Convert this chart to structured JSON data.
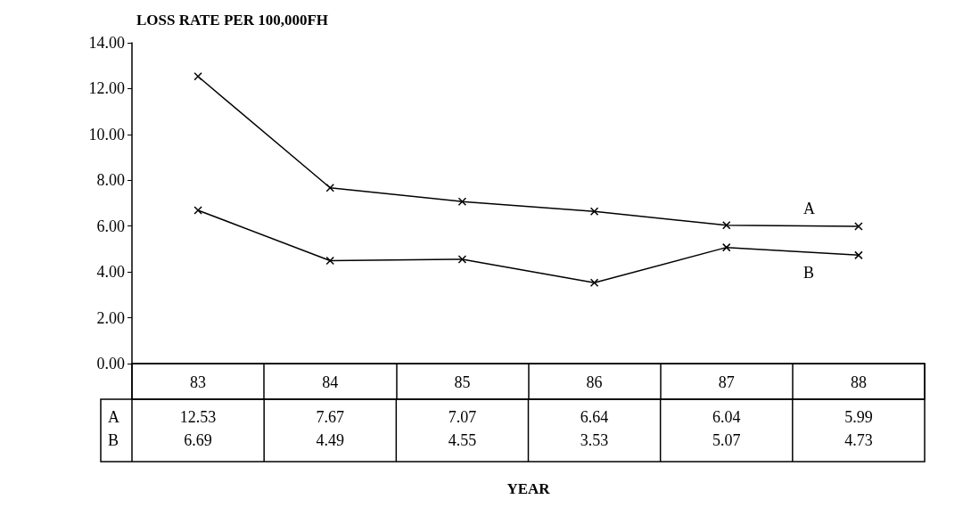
{
  "chart_data": {
    "type": "line",
    "ylabel": "LOSS RATE PER 100,000FH",
    "annotations": [
      "YEAR"
    ],
    "categories": [
      "83",
      "84",
      "85",
      "86",
      "87",
      "88"
    ],
    "series": [
      {
        "name": "A",
        "color": "#000000",
        "values": [
          12.53,
          7.67,
          7.07,
          6.64,
          6.04,
          5.99
        ]
      },
      {
        "name": "B",
        "color": "#000000",
        "values": [
          6.69,
          4.49,
          4.55,
          3.53,
          5.07,
          4.73
        ]
      }
    ],
    "ylim": [
      0,
      14
    ],
    "yticks": [
      {
        "value": 0,
        "label": "0.00"
      },
      {
        "value": 2,
        "label": "2.00"
      },
      {
        "value": 4,
        "label": "4.00"
      },
      {
        "value": 6,
        "label": "6.00"
      },
      {
        "value": 8,
        "label": "8.00"
      },
      {
        "value": 10,
        "label": "10.00"
      },
      {
        "value": 12,
        "label": "12.00"
      },
      {
        "value": 14,
        "label": "14.00"
      }
    ],
    "grid": false,
    "legend": false,
    "marker": "cross",
    "line_style": "solid",
    "data_labels": true
  }
}
